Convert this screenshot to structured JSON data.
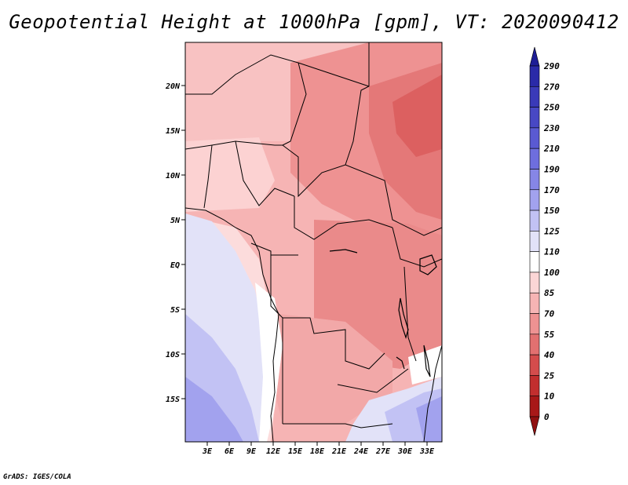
{
  "title": "Geopotential Height at 1000hPa [gpm], VT: 2020090412",
  "credit": "GrADS: IGES/COLA",
  "map": {
    "lat_labels": [
      "20N",
      "15N",
      "10N",
      "5N",
      "EQ",
      "5S",
      "10S",
      "15S"
    ],
    "lon_labels": [
      "3E",
      "6E",
      "9E",
      "12E",
      "15E",
      "18E",
      "21E",
      "24E",
      "27E",
      "30E",
      "33E"
    ]
  },
  "colorbar": {
    "levels": [
      "290",
      "270",
      "250",
      "230",
      "210",
      "190",
      "170",
      "150",
      "125",
      "110",
      "100",
      "85",
      "70",
      "55",
      "40",
      "25",
      "10",
      "0"
    ],
    "colors": [
      "#1e1e96",
      "#2a2aa8",
      "#3a3ab8",
      "#4848c4",
      "#5a5ad2",
      "#6e6ede",
      "#8686e6",
      "#a2a2ee",
      "#c2c2f4",
      "#e2e2f8",
      "#ffffff",
      "#fbd6d6",
      "#f6b4b4",
      "#ee9292",
      "#e27070",
      "#d44c4c",
      "#c22e2e",
      "#a81818",
      "#901010"
    ],
    "accent_high": "#1e1e96",
    "accent_low": "#a81818"
  }
}
